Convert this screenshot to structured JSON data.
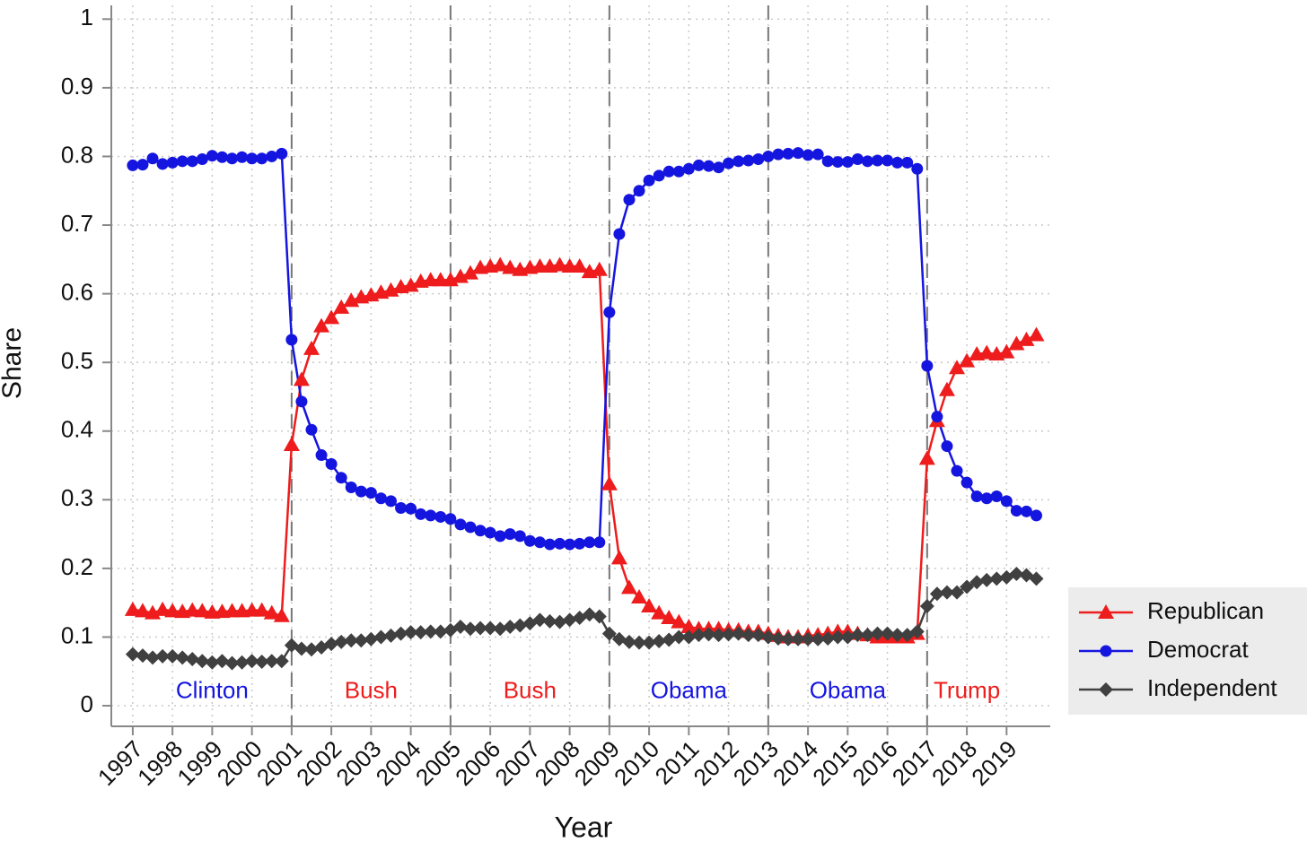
{
  "chart_data": {
    "type": "line",
    "y_label": "Share",
    "x_label": "Year",
    "x": [
      1997,
      1997.25,
      1997.5,
      1997.75,
      1998,
      1998.25,
      1998.5,
      1998.75,
      1999,
      1999.25,
      1999.5,
      1999.75,
      2000,
      2000.25,
      2000.5,
      2000.75,
      2001,
      2001.25,
      2001.5,
      2001.75,
      2002,
      2002.25,
      2002.5,
      2002.75,
      2003,
      2003.25,
      2003.5,
      2003.75,
      2004,
      2004.25,
      2004.5,
      2004.75,
      2005,
      2005.25,
      2005.5,
      2005.75,
      2006,
      2006.25,
      2006.5,
      2006.75,
      2007,
      2007.25,
      2007.5,
      2007.75,
      2008,
      2008.25,
      2008.5,
      2008.75,
      2009,
      2009.25,
      2009.5,
      2009.75,
      2010,
      2010.25,
      2010.5,
      2010.75,
      2011,
      2011.25,
      2011.5,
      2011.75,
      2012,
      2012.25,
      2012.5,
      2012.75,
      2013,
      2013.25,
      2013.5,
      2013.75,
      2014,
      2014.25,
      2014.5,
      2014.75,
      2015,
      2015.25,
      2015.5,
      2015.75,
      2016,
      2016.25,
      2016.5,
      2016.75,
      2017,
      2017.25,
      2017.5,
      2017.75,
      2018,
      2018.25,
      2018.5,
      2018.75,
      2019,
      2019.25,
      2019.5,
      2019.75
    ],
    "series": [
      {
        "name": "Republican",
        "color": "#ee1c1c",
        "marker": "triangle",
        "values": [
          0.14,
          0.138,
          0.135,
          0.14,
          0.138,
          0.137,
          0.139,
          0.138,
          0.136,
          0.137,
          0.138,
          0.138,
          0.139,
          0.139,
          0.135,
          0.131,
          0.38,
          0.475,
          0.52,
          0.553,
          0.565,
          0.58,
          0.59,
          0.595,
          0.598,
          0.602,
          0.605,
          0.61,
          0.612,
          0.618,
          0.62,
          0.62,
          0.62,
          0.625,
          0.63,
          0.638,
          0.64,
          0.642,
          0.638,
          0.635,
          0.638,
          0.64,
          0.64,
          0.642,
          0.64,
          0.64,
          0.632,
          0.635,
          0.323,
          0.215,
          0.172,
          0.158,
          0.145,
          0.135,
          0.128,
          0.122,
          0.115,
          0.112,
          0.112,
          0.112,
          0.11,
          0.11,
          0.108,
          0.108,
          0.105,
          0.102,
          0.1,
          0.1,
          0.102,
          0.103,
          0.105,
          0.108,
          0.108,
          0.105,
          0.103,
          0.1,
          0.1,
          0.1,
          0.1,
          0.105,
          0.36,
          0.415,
          0.46,
          0.492,
          0.502,
          0.512,
          0.514,
          0.512,
          0.515,
          0.527,
          0.533,
          0.54
        ]
      },
      {
        "name": "Democrat",
        "color": "#1515e0",
        "marker": "circle",
        "values": [
          0.787,
          0.788,
          0.797,
          0.789,
          0.791,
          0.793,
          0.793,
          0.796,
          0.801,
          0.799,
          0.797,
          0.799,
          0.797,
          0.797,
          0.8,
          0.804,
          0.533,
          0.443,
          0.402,
          0.365,
          0.352,
          0.332,
          0.318,
          0.312,
          0.31,
          0.302,
          0.298,
          0.288,
          0.287,
          0.279,
          0.277,
          0.275,
          0.272,
          0.264,
          0.26,
          0.255,
          0.252,
          0.247,
          0.25,
          0.247,
          0.24,
          0.238,
          0.235,
          0.236,
          0.235,
          0.236,
          0.238,
          0.238,
          0.573,
          0.687,
          0.737,
          0.75,
          0.765,
          0.772,
          0.778,
          0.778,
          0.782,
          0.787,
          0.786,
          0.784,
          0.79,
          0.793,
          0.794,
          0.796,
          0.8,
          0.803,
          0.804,
          0.805,
          0.802,
          0.803,
          0.793,
          0.792,
          0.792,
          0.796,
          0.793,
          0.794,
          0.794,
          0.791,
          0.791,
          0.782,
          0.495,
          0.421,
          0.378,
          0.342,
          0.325,
          0.305,
          0.302,
          0.305,
          0.298,
          0.284,
          0.283,
          0.277
        ]
      },
      {
        "name": "Independent",
        "color": "#404040",
        "marker": "diamond",
        "values": [
          0.075,
          0.073,
          0.07,
          0.072,
          0.072,
          0.07,
          0.068,
          0.065,
          0.063,
          0.065,
          0.062,
          0.063,
          0.065,
          0.064,
          0.065,
          0.065,
          0.088,
          0.083,
          0.082,
          0.085,
          0.09,
          0.093,
          0.095,
          0.095,
          0.097,
          0.1,
          0.102,
          0.105,
          0.107,
          0.107,
          0.108,
          0.108,
          0.11,
          0.115,
          0.112,
          0.113,
          0.113,
          0.112,
          0.115,
          0.117,
          0.12,
          0.125,
          0.123,
          0.122,
          0.125,
          0.128,
          0.133,
          0.13,
          0.105,
          0.097,
          0.093,
          0.092,
          0.092,
          0.094,
          0.096,
          0.1,
          0.1,
          0.103,
          0.104,
          0.103,
          0.104,
          0.105,
          0.103,
          0.103,
          0.1,
          0.098,
          0.097,
          0.097,
          0.097,
          0.097,
          0.098,
          0.1,
          0.1,
          0.103,
          0.103,
          0.105,
          0.105,
          0.103,
          0.103,
          0.108,
          0.145,
          0.163,
          0.165,
          0.165,
          0.173,
          0.18,
          0.183,
          0.185,
          0.187,
          0.192,
          0.19,
          0.185
        ]
      }
    ],
    "xlim": [
      1996.46,
      2020.1
    ],
    "ylim": [
      -0.03,
      1.02
    ],
    "xticks": [
      1997,
      1998,
      1999,
      2000,
      2001,
      2002,
      2003,
      2004,
      2005,
      2006,
      2007,
      2008,
      2009,
      2010,
      2011,
      2012,
      2013,
      2014,
      2015,
      2016,
      2017,
      2018,
      2019
    ],
    "yticks": [
      0,
      0.1,
      0.2,
      0.3,
      0.4,
      0.5,
      0.6,
      0.7,
      0.8,
      0.9,
      1
    ],
    "grid": true,
    "legend": "right",
    "vlines": [
      2001,
      2005,
      2009,
      2013,
      2017
    ],
    "annotations": [
      {
        "text": "Clinton",
        "x": 1999,
        "y": 0.02,
        "color": "#1515e0"
      },
      {
        "text": "Bush",
        "x": 2003,
        "y": 0.02,
        "color": "#ee1c1c"
      },
      {
        "text": "Bush",
        "x": 2007,
        "y": 0.02,
        "color": "#ee1c1c"
      },
      {
        "text": "Obama",
        "x": 2011,
        "y": 0.02,
        "color": "#1515e0"
      },
      {
        "text": "Obama",
        "x": 2015,
        "y": 0.02,
        "color": "#1515e0"
      },
      {
        "text": "Trump",
        "x": 2018,
        "y": 0.02,
        "color": "#ee1c1c"
      }
    ]
  }
}
